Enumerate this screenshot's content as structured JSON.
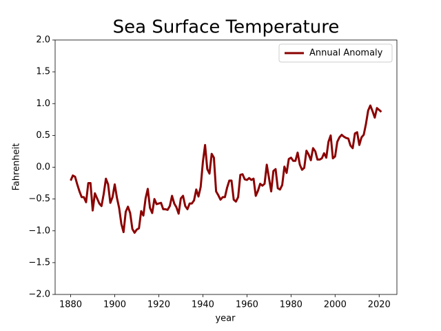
{
  "chart_data": {
    "type": "line",
    "title": "Sea Surface Temperature",
    "x_label": "year",
    "y_label": "Fahrenheit",
    "x": [
      1880,
      1881,
      1882,
      1883,
      1884,
      1885,
      1886,
      1887,
      1888,
      1889,
      1890,
      1891,
      1892,
      1893,
      1894,
      1895,
      1896,
      1897,
      1898,
      1899,
      1900,
      1901,
      1902,
      1903,
      1904,
      1905,
      1906,
      1907,
      1908,
      1909,
      1910,
      1911,
      1912,
      1913,
      1914,
      1915,
      1916,
      1917,
      1918,
      1919,
      1920,
      1921,
      1922,
      1923,
      1924,
      1925,
      1926,
      1927,
      1928,
      1929,
      1930,
      1931,
      1932,
      1933,
      1934,
      1935,
      1936,
      1937,
      1938,
      1939,
      1940,
      1941,
      1942,
      1943,
      1944,
      1945,
      1946,
      1947,
      1948,
      1949,
      1950,
      1951,
      1952,
      1953,
      1954,
      1955,
      1956,
      1957,
      1958,
      1959,
      1960,
      1961,
      1962,
      1963,
      1964,
      1965,
      1966,
      1967,
      1968,
      1969,
      1970,
      1971,
      1972,
      1973,
      1974,
      1975,
      1976,
      1977,
      1978,
      1979,
      1980,
      1981,
      1982,
      1983,
      1984,
      1985,
      1986,
      1987,
      1988,
      1989,
      1990,
      1991,
      1992,
      1993,
      1994,
      1995,
      1996,
      1997,
      1998,
      1999,
      2000,
      2001,
      2002,
      2003,
      2004,
      2005,
      2006,
      2007,
      2008,
      2009,
      2010,
      2011,
      2012,
      2013,
      2014,
      2015,
      2016,
      2017,
      2018,
      2019,
      2020,
      2021
    ],
    "series": [
      {
        "name": "Annual Anomaly",
        "color": "#8b0000",
        "values": [
          -0.21,
          -0.13,
          -0.15,
          -0.27,
          -0.38,
          -0.47,
          -0.47,
          -0.55,
          -0.25,
          -0.25,
          -0.68,
          -0.41,
          -0.49,
          -0.57,
          -0.61,
          -0.42,
          -0.18,
          -0.27,
          -0.56,
          -0.47,
          -0.27,
          -0.48,
          -0.64,
          -0.89,
          -1.02,
          -0.7,
          -0.62,
          -0.72,
          -0.97,
          -1.03,
          -0.98,
          -0.96,
          -0.69,
          -0.76,
          -0.49,
          -0.34,
          -0.64,
          -0.72,
          -0.5,
          -0.58,
          -0.57,
          -0.56,
          -0.66,
          -0.66,
          -0.67,
          -0.61,
          -0.45,
          -0.57,
          -0.63,
          -0.73,
          -0.49,
          -0.45,
          -0.61,
          -0.66,
          -0.57,
          -0.57,
          -0.52,
          -0.35,
          -0.46,
          -0.31,
          0.08,
          0.35,
          -0.03,
          -0.1,
          0.21,
          0.15,
          -0.38,
          -0.44,
          -0.51,
          -0.47,
          -0.47,
          -0.32,
          -0.21,
          -0.21,
          -0.51,
          -0.54,
          -0.47,
          -0.12,
          -0.11,
          -0.19,
          -0.2,
          -0.17,
          -0.2,
          -0.18,
          -0.45,
          -0.37,
          -0.26,
          -0.29,
          -0.26,
          0.04,
          -0.17,
          -0.38,
          -0.06,
          -0.03,
          -0.33,
          -0.35,
          -0.28,
          0.01,
          -0.09,
          0.13,
          0.15,
          0.1,
          0.1,
          0.23,
          0.04,
          -0.04,
          -0.01,
          0.26,
          0.2,
          0.11,
          0.3,
          0.25,
          0.12,
          0.12,
          0.14,
          0.22,
          0.15,
          0.4,
          0.5,
          0.14,
          0.17,
          0.4,
          0.47,
          0.51,
          0.48,
          0.46,
          0.45,
          0.34,
          0.3,
          0.53,
          0.55,
          0.35,
          0.47,
          0.51,
          0.68,
          0.89,
          0.97,
          0.88,
          0.78,
          0.93,
          0.9,
          0.87
        ]
      }
    ],
    "xlim": [
      1872.95,
      2028.05
    ],
    "xticks": [
      1880,
      1900,
      1920,
      1940,
      1960,
      1980,
      2000,
      2020
    ],
    "ylim": [
      -2.0,
      2.0
    ],
    "yticks": [
      {
        "value": -2.0,
        "label": "−2.0"
      },
      {
        "value": -1.5,
        "label": "−1.5"
      },
      {
        "value": -1.0,
        "label": "−1.0"
      },
      {
        "value": -0.5,
        "label": "−0.5"
      },
      {
        "value": 0.0,
        "label": "0.0"
      },
      0.5,
      {
        "value": 1.0,
        "label": "1.0"
      },
      {
        "value": 1.5,
        "label": "1.5"
      },
      {
        "value": 2.0,
        "label": "2.0"
      }
    ],
    "legend": "upper right",
    "grid": false
  }
}
